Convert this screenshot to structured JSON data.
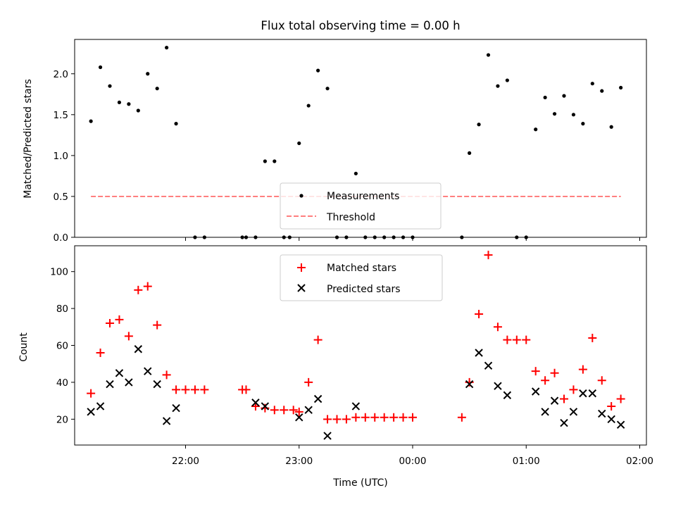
{
  "chart_data": [
    {
      "type": "scatter",
      "title": "Flux total observing time = 0.00 h",
      "ylabel": "Matched/Predicted stars",
      "xlabel": "",
      "ylim": [
        0,
        2.42
      ],
      "yticks": [
        "0.0",
        "0.5",
        "1.0",
        "1.5",
        "2.0"
      ],
      "legend": {
        "placement": "lower-center",
        "entries": [
          "Measurements",
          "Threshold"
        ]
      },
      "colors": {
        "measurements": "#000000",
        "threshold": "#ff7f7f"
      },
      "threshold": {
        "name": "Threshold",
        "value": 0.5,
        "x_start": "21:10",
        "x_end": "01:50"
      },
      "series": [
        {
          "name": "Measurements",
          "x": [
            "21:10",
            "21:15",
            "21:20",
            "21:25",
            "21:30",
            "21:35",
            "21:40",
            "21:45",
            "21:50",
            "21:55",
            "22:05",
            "22:10",
            "22:30",
            "22:32",
            "22:37",
            "22:42",
            "22:47",
            "22:52",
            "22:55",
            "23:00",
            "23:05",
            "23:10",
            "23:15",
            "23:20",
            "23:25",
            "23:30",
            "23:35",
            "23:40",
            "23:45",
            "23:50",
            "23:55",
            "00:00",
            "00:26",
            "00:30",
            "00:35",
            "00:40",
            "00:45",
            "00:50",
            "00:55",
            "01:00",
            "01:05",
            "01:10",
            "01:15",
            "01:20",
            "01:25",
            "01:30",
            "01:35",
            "01:40",
            "01:45",
            "01:50"
          ],
          "y": [
            1.42,
            2.08,
            1.85,
            1.65,
            1.63,
            1.55,
            2.0,
            1.82,
            2.32,
            1.39,
            0.0,
            0.0,
            0.0,
            0.0,
            0.0,
            0.93,
            0.93,
            0.0,
            0.0,
            1.15,
            1.61,
            2.04,
            1.82,
            0.0,
            0.0,
            0.78,
            0.0,
            0.0,
            0.0,
            0.0,
            0.0,
            0.0,
            0.0,
            1.03,
            1.38,
            2.23,
            1.85,
            1.92,
            0.0,
            0.0,
            1.32,
            1.71,
            1.51,
            1.73,
            1.5,
            1.39,
            1.88,
            1.79,
            1.35,
            1.83
          ]
        }
      ]
    },
    {
      "type": "scatter",
      "title": "",
      "ylabel": "Count",
      "xlabel": "Time (UTC)",
      "ylim": [
        6,
        114
      ],
      "yticks": [
        "20",
        "40",
        "60",
        "80",
        "100"
      ],
      "xticks": [
        "22:00",
        "23:00",
        "00:00",
        "01:00",
        "02:00"
      ],
      "legend": {
        "placement": "upper-center",
        "entries": [
          "Matched stars",
          "Predicted stars"
        ]
      },
      "colors": {
        "matched": "#ff0000",
        "predicted": "#000000"
      },
      "series": [
        {
          "name": "Matched stars",
          "marker": "+",
          "x": [
            "21:10",
            "21:15",
            "21:20",
            "21:25",
            "21:30",
            "21:35",
            "21:40",
            "21:45",
            "21:50",
            "21:55",
            "22:00",
            "22:05",
            "22:10",
            "22:30",
            "22:32",
            "22:37",
            "22:42",
            "22:47",
            "22:52",
            "22:57",
            "23:00",
            "23:05",
            "23:10",
            "23:15",
            "23:20",
            "23:25",
            "23:30",
            "23:35",
            "23:40",
            "23:45",
            "23:50",
            "23:55",
            "00:00",
            "00:26",
            "00:30",
            "00:35",
            "00:40",
            "00:45",
            "00:50",
            "00:55",
            "01:00",
            "01:05",
            "01:10",
            "01:15",
            "01:20",
            "01:25",
            "01:30",
            "01:35",
            "01:40",
            "01:45",
            "01:50"
          ],
          "y": [
            34,
            56,
            72,
            74,
            65,
            90,
            92,
            71,
            44,
            36,
            36,
            36,
            36,
            36,
            36,
            27,
            26,
            25,
            25,
            25,
            24,
            40,
            63,
            20,
            20,
            20,
            21,
            21,
            21,
            21,
            21,
            21,
            21,
            21,
            40,
            77,
            109,
            70,
            63,
            63,
            63,
            46,
            41,
            45,
            31,
            36,
            47,
            64,
            41,
            27,
            31
          ]
        },
        {
          "name": "Predicted stars",
          "marker": "x",
          "x": [
            "21:10",
            "21:15",
            "21:20",
            "21:25",
            "21:30",
            "21:35",
            "21:40",
            "21:45",
            "21:50",
            "21:55",
            "22:37",
            "22:42",
            "23:00",
            "23:05",
            "23:10",
            "23:15",
            "23:30",
            "00:30",
            "00:35",
            "00:40",
            "00:45",
            "00:50",
            "01:05",
            "01:10",
            "01:15",
            "01:20",
            "01:25",
            "01:30",
            "01:35",
            "01:40",
            "01:45",
            "01:50"
          ],
          "y": [
            24,
            27,
            39,
            45,
            40,
            58,
            46,
            39,
            19,
            26,
            29,
            27,
            21,
            25,
            31,
            11,
            27,
            39,
            56,
            49,
            38,
            33,
            35,
            24,
            30,
            18,
            24,
            34,
            34,
            23,
            20,
            17
          ]
        }
      ]
    }
  ]
}
